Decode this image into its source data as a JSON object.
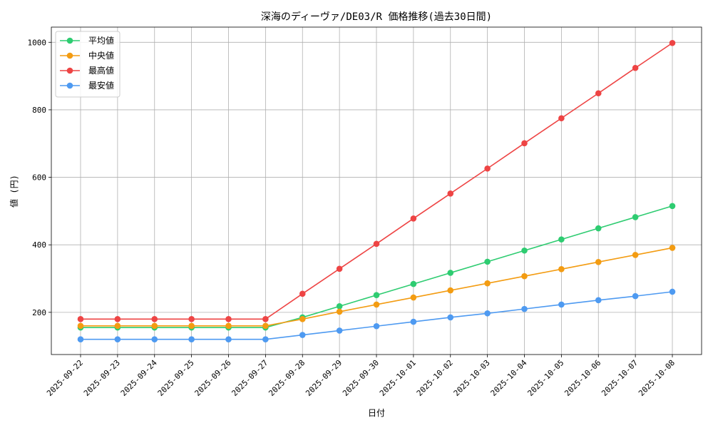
{
  "chart_data": {
    "type": "line",
    "title": "深海のディーヴァ/DE03/R 価格推移(過去30日間)",
    "xlabel": "日付",
    "ylabel": "値 (円)",
    "categories": [
      "2025-09-22",
      "2025-09-23",
      "2025-09-24",
      "2025-09-25",
      "2025-09-26",
      "2025-09-27",
      "2025-09-28",
      "2025-09-29",
      "2025-09-30",
      "2025-10-01",
      "2025-10-02",
      "2025-10-03",
      "2025-10-04",
      "2025-10-05",
      "2025-10-06",
      "2025-10-07",
      "2025-10-08"
    ],
    "ylim": [
      75,
      1045
    ],
    "yticks": [
      200,
      400,
      600,
      800,
      1000
    ],
    "grid": true,
    "legend_position": "top-left",
    "series": [
      {
        "name": "平均値",
        "color": "#2ecc71",
        "values": [
          155,
          155,
          155,
          155,
          155,
          155,
          185,
          218,
          251,
          284,
          317,
          350,
          383,
          416,
          449,
          482,
          515
        ]
      },
      {
        "name": "中央値",
        "color": "#f39c12",
        "values": [
          160,
          160,
          160,
          160,
          160,
          160,
          180,
          202,
          223,
          244,
          265,
          286,
          307,
          328,
          349,
          370,
          391
        ]
      },
      {
        "name": "最高値",
        "color": "#ee4444",
        "values": [
          180,
          180,
          180,
          180,
          180,
          180,
          255,
          329,
          403,
          478,
          552,
          626,
          701,
          775,
          849,
          924,
          998
        ]
      },
      {
        "name": "最安値",
        "color": "#4e9af1",
        "values": [
          120,
          120,
          120,
          120,
          120,
          120,
          133,
          146,
          159,
          172,
          185,
          197,
          210,
          223,
          236,
          248,
          261
        ]
      }
    ]
  }
}
